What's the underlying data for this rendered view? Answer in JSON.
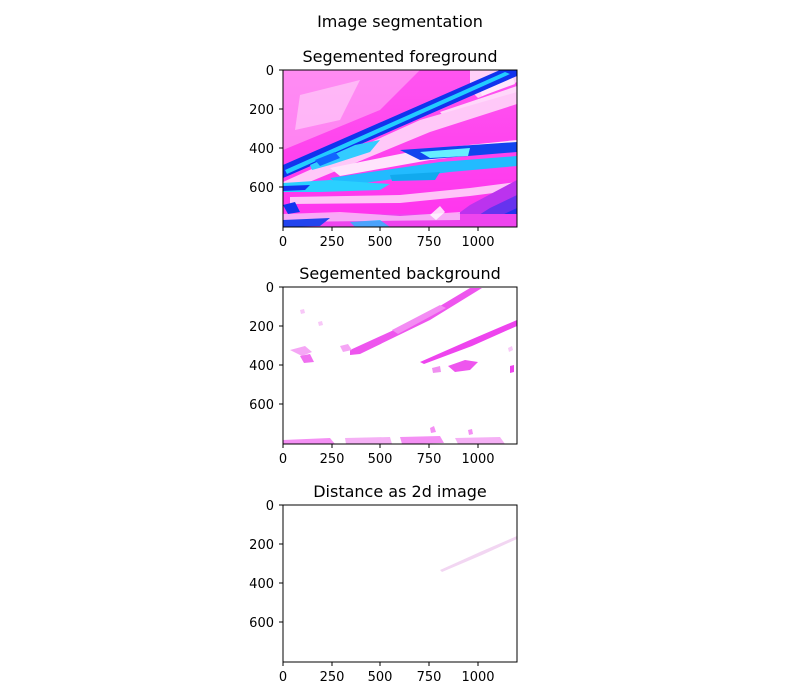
{
  "figure": {
    "suptitle": "Image segmentation"
  },
  "chart_data": [
    {
      "type": "heatmap",
      "title": "Segemented foreground",
      "xlim": [
        0,
        1200
      ],
      "ylim": [
        800,
        0
      ],
      "x_ticks": [
        "0",
        "250",
        "500",
        "750",
        "1000"
      ],
      "y_ticks": [
        "0",
        "200",
        "400",
        "600"
      ],
      "x_tick_values": [
        0,
        250,
        500,
        750,
        1000
      ],
      "y_tick_values": [
        0,
        200,
        400,
        600
      ],
      "image_colors": {
        "dominant": "#ff33ee",
        "light": "#ffc4f8",
        "accent": "#22bbff",
        "dark": "#1133ee"
      }
    },
    {
      "type": "heatmap",
      "title": "Segemented background",
      "xlim": [
        0,
        1200
      ],
      "ylim": [
        800,
        0
      ],
      "x_ticks": [
        "0",
        "250",
        "500",
        "750",
        "1000"
      ],
      "y_ticks": [
        "0",
        "200",
        "400",
        "600"
      ],
      "x_tick_values": [
        0,
        250,
        500,
        750,
        1000
      ],
      "y_tick_values": [
        0,
        200,
        400,
        600
      ],
      "image_colors": {
        "background": "#ffffff",
        "marks": "#ee44ee"
      }
    },
    {
      "type": "heatmap",
      "title": "Distance as 2d image",
      "xlim": [
        0,
        1200
      ],
      "ylim": [
        800,
        0
      ],
      "x_ticks": [
        "0",
        "250",
        "500",
        "750",
        "1000"
      ],
      "y_ticks": [
        "0",
        "200",
        "400",
        "600"
      ],
      "x_tick_values": [
        0,
        250,
        500,
        750,
        1000
      ],
      "y_tick_values": [
        0,
        200,
        400,
        600
      ],
      "image_colors": {
        "background": "#ffffff",
        "marks": "#f2d6f2"
      }
    }
  ]
}
